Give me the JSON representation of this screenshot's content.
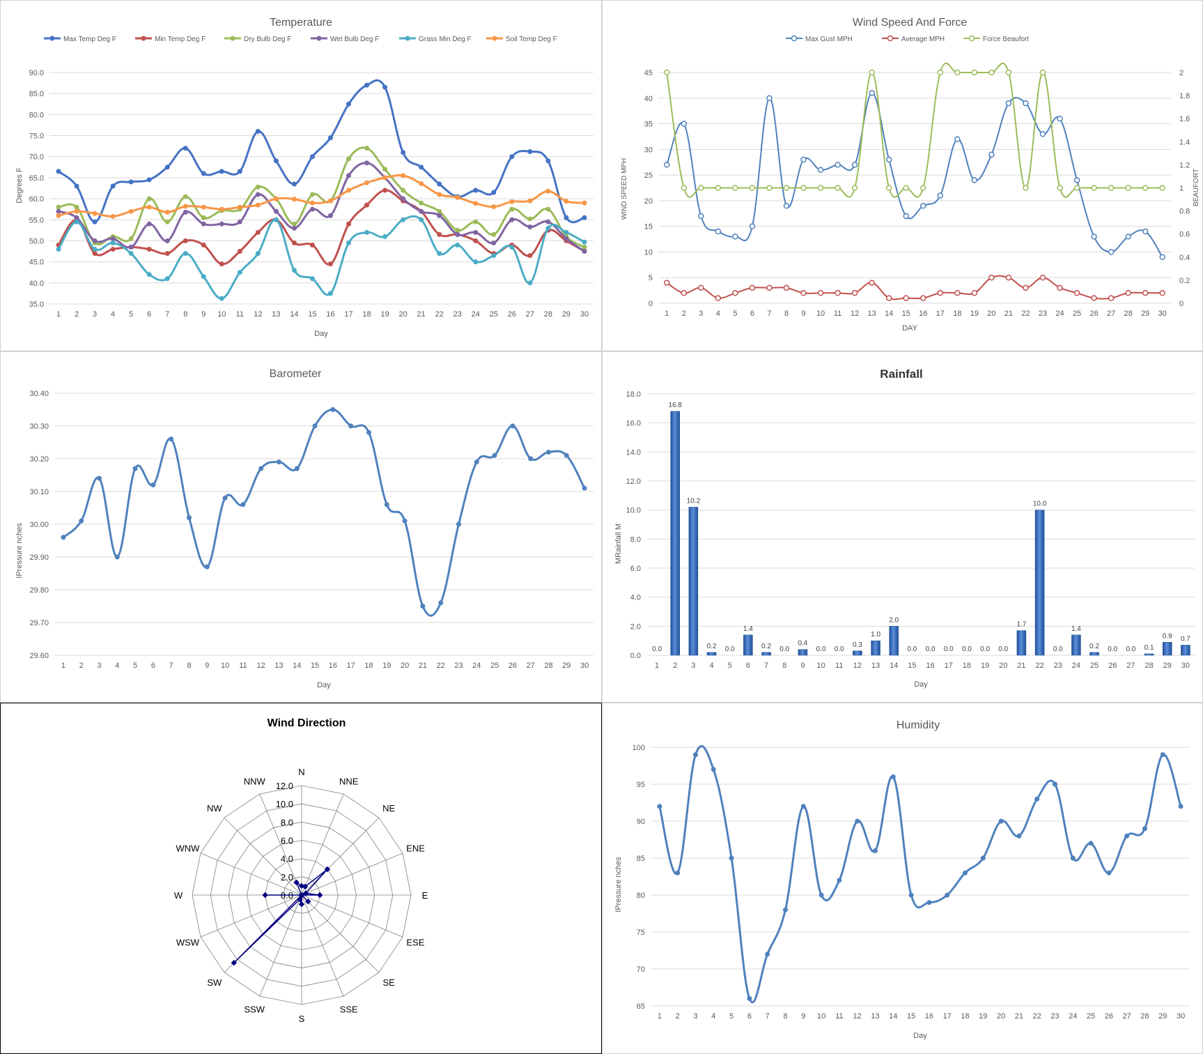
{
  "colors": {
    "max_temp": "#4472C4",
    "min_temp": "#C0504D",
    "dry_bulb": "#9BBB59",
    "wet_bulb": "#8064A2",
    "grass_min": "#4BACC6",
    "soil_temp": "#F79646",
    "wind_gust": "#4F81BD",
    "wind_avg": "#C0504D",
    "beaufort": "#9BBB59",
    "baro": "#4F81BD",
    "rain": "#2E64B0",
    "wind_dir": "#000080",
    "humidity": "#4F81BD",
    "grid": "#D9D9D9",
    "axis_text": "#595959"
  },
  "chart_data": [
    {
      "id": "temperature",
      "type": "line",
      "title": "Temperature",
      "xlabel": "Day",
      "ylabel": "Degrees F",
      "ylim": [
        35,
        90
      ],
      "yticks": [
        "35.0",
        "40.0",
        "45.0",
        "50.0",
        "55.0",
        "60.0",
        "65.0",
        "70.0",
        "75.0",
        "80.0",
        "85.0",
        "90.0"
      ],
      "grid": true,
      "legend": "top",
      "x": [
        1,
        2,
        3,
        4,
        5,
        6,
        7,
        8,
        9,
        10,
        11,
        12,
        13,
        14,
        15,
        16,
        17,
        18,
        19,
        20,
        21,
        22,
        23,
        24,
        25,
        26,
        27,
        28,
        29,
        30
      ],
      "series": [
        {
          "name": "Max Temp Deg F",
          "values": [
            66.5,
            63,
            54.5,
            63,
            64,
            64.5,
            67.5,
            72,
            66,
            66.5,
            66.5,
            76,
            69,
            63.5,
            70,
            74.5,
            82.5,
            87,
            86.5,
            71,
            67.5,
            63.5,
            60.5,
            62,
            61.5,
            70,
            71.2,
            69,
            55.5,
            55.5
          ]
        },
        {
          "name": "Min Temp Deg F",
          "values": [
            49,
            55,
            47,
            48,
            48.5,
            48,
            47,
            50,
            49,
            44.5,
            47.5,
            52,
            55,
            49.5,
            49,
            44.5,
            54,
            58.5,
            62,
            59.5,
            57,
            51.5,
            51.5,
            50,
            47,
            49,
            46.5,
            52.5,
            50,
            47.5
          ]
        },
        {
          "name": "Dry Bulb Deg F",
          "values": [
            58,
            58,
            49.5,
            51,
            50.5,
            60,
            54.5,
            60.5,
            55.5,
            57.2,
            57.5,
            62.8,
            60,
            54,
            61,
            59.5,
            69.5,
            72,
            67,
            62,
            59,
            57,
            52.5,
            54.5,
            51.5,
            57.5,
            55.2,
            57.5,
            51,
            48.5
          ]
        },
        {
          "name": "Wet Bulb Deg F",
          "values": [
            57,
            55.5,
            50,
            50.5,
            48.5,
            54,
            50,
            56.8,
            54,
            54,
            54.5,
            61,
            57,
            53,
            57.5,
            56,
            65.5,
            68.5,
            65,
            60,
            57,
            56,
            51.5,
            52,
            49.5,
            55,
            53.3,
            54.5,
            50.5,
            47.5
          ]
        },
        {
          "name": "Grass Min Deg F",
          "values": [
            48,
            54.5,
            48,
            49.5,
            47,
            42,
            41,
            47,
            41.5,
            36.3,
            42.5,
            47,
            55,
            43,
            41,
            37.5,
            49.5,
            52,
            51,
            55,
            55,
            47,
            49,
            45,
            46.5,
            48.5,
            40,
            53,
            52,
            49.7
          ]
        },
        {
          "name": "Soil Temp Deg F",
          "values": [
            56,
            57,
            56.5,
            55.8,
            57,
            58,
            56.8,
            58.2,
            58,
            57.5,
            58,
            58.5,
            60,
            59.9,
            59,
            59.5,
            62,
            63.8,
            65,
            65.5,
            63.6,
            61,
            60.3,
            58.9,
            58.1,
            59.3,
            59.5,
            61.8,
            59.4,
            59
          ]
        }
      ]
    },
    {
      "id": "wind",
      "type": "line",
      "title": "Wind Speed And Force",
      "xlabel": "DAY",
      "ylabel": "WIND SPEED MPH",
      "y2label": "BEAUFORT",
      "ylim": [
        0,
        45
      ],
      "y2lim": [
        0,
        2
      ],
      "yticks": [
        "0",
        "5",
        "10",
        "15",
        "20",
        "25",
        "30",
        "35",
        "40",
        "45"
      ],
      "y2ticks": [
        "0",
        "0.2",
        "0.4",
        "0.6",
        "0.8",
        "1",
        "1.2",
        "1.4",
        "1.6",
        "1.8",
        "2"
      ],
      "grid": true,
      "legend": "top",
      "x": [
        1,
        2,
        3,
        4,
        5,
        6,
        7,
        8,
        9,
        10,
        11,
        12,
        13,
        14,
        15,
        16,
        17,
        18,
        19,
        20,
        21,
        22,
        23,
        24,
        25,
        26,
        27,
        28,
        29,
        30
      ],
      "series": [
        {
          "name": "Max Gust MPH",
          "axis": "left",
          "values": [
            27,
            35,
            17,
            14,
            13,
            15,
            40,
            19,
            28,
            26,
            27,
            27,
            41,
            28,
            17,
            19,
            21,
            32,
            24,
            29,
            39,
            39,
            33,
            36,
            24,
            13,
            10,
            13,
            14,
            9
          ]
        },
        {
          "name": "Average MPH",
          "axis": "left",
          "values": [
            4,
            2,
            3,
            1,
            2,
            3,
            3,
            3,
            2,
            2,
            2,
            2,
            4,
            1,
            1,
            1,
            2,
            2,
            2,
            5,
            5,
            3,
            5,
            3,
            2,
            1,
            1,
            2,
            2,
            2
          ]
        },
        {
          "name": "Force Beaufort",
          "axis": "right",
          "values": [
            2,
            1,
            1,
            1,
            1,
            1,
            1,
            1,
            1,
            1,
            1,
            1,
            2,
            1,
            1,
            1,
            2,
            2,
            2,
            2,
            2,
            1,
            2,
            1,
            1,
            1,
            1,
            1,
            1,
            1
          ]
        }
      ]
    },
    {
      "id": "barometer",
      "type": "line",
      "title": "Barometer",
      "xlabel": "Day",
      "ylabel": "IPressure nches",
      "ylim": [
        29.6,
        30.4
      ],
      "yticks": [
        "29.60",
        "29.70",
        "29.80",
        "29.90",
        "30.00",
        "30.10",
        "30.20",
        "30.30",
        "30.40"
      ],
      "grid": true,
      "x": [
        1,
        2,
        3,
        4,
        5,
        6,
        7,
        8,
        9,
        10,
        11,
        12,
        13,
        14,
        15,
        16,
        17,
        18,
        19,
        20,
        21,
        22,
        23,
        24,
        25,
        26,
        27,
        28,
        29,
        30
      ],
      "series": [
        {
          "name": "",
          "values": [
            29.96,
            30.01,
            30.14,
            29.9,
            30.17,
            30.12,
            30.26,
            30.02,
            29.87,
            30.08,
            30.06,
            30.17,
            30.19,
            30.17,
            30.3,
            30.35,
            30.3,
            30.28,
            30.06,
            30.01,
            29.75,
            29.76,
            30.0,
            30.19,
            30.21,
            30.3,
            30.2,
            30.22,
            30.21,
            30.11
          ]
        }
      ]
    },
    {
      "id": "rainfall",
      "type": "bar",
      "title": "Rainfall",
      "xlabel": "Day",
      "ylabel": "MRainfall M",
      "ylim": [
        0,
        18
      ],
      "yticks": [
        "0.0",
        "2.0",
        "4.0",
        "6.0",
        "8.0",
        "10.0",
        "12.0",
        "14.0",
        "16.0",
        "18.0"
      ],
      "grid": true,
      "categories": [
        "1",
        "2",
        "3",
        "4",
        "5",
        "6",
        "7",
        "8",
        "9",
        "10",
        "11",
        "12",
        "13",
        "14",
        "15",
        "16",
        "17",
        "18",
        "19",
        "20",
        "21",
        "22",
        "23",
        "24",
        "25",
        "26",
        "27",
        "28",
        "29",
        "30"
      ],
      "values": [
        0.0,
        16.8,
        10.2,
        0.2,
        0.0,
        1.4,
        0.2,
        0.0,
        0.4,
        0.0,
        0.0,
        0.3,
        1.0,
        2.0,
        0.0,
        0.0,
        0.0,
        0.0,
        0.0,
        0.0,
        1.7,
        10.0,
        0.0,
        1.4,
        0.2,
        0.0,
        0.0,
        0.1,
        0.9,
        0.7
      ],
      "data_labels": [
        "0.0",
        "16.8",
        "10.2",
        "0.2",
        "0.0",
        "1.4",
        "0.2",
        "0.0",
        "0.4",
        "0.0",
        "0.0",
        "0.3",
        "1.0",
        "2.0",
        "0.0",
        "0.0",
        "0.0",
        "0.0",
        "0.0",
        "0.0",
        "1.7",
        "10.0",
        "0.0",
        "1.4",
        "0.2",
        "0.0",
        "0.0",
        "0.1",
        "0.9",
        "0.7"
      ]
    },
    {
      "id": "wind_direction",
      "type": "radar",
      "title": "Wind Direction",
      "rlim": [
        0,
        12
      ],
      "rticks": [
        "0.0",
        "2.0",
        "4.0",
        "6.0",
        "8.0",
        "10.0",
        "12.0"
      ],
      "categories": [
        "N",
        "NNE",
        "NE",
        "ENE",
        "E",
        "ESE",
        "SE",
        "SSE",
        "S",
        "SSW",
        "SW",
        "WSW",
        "W",
        "WNW",
        "NW",
        "NNW"
      ],
      "values": [
        1.0,
        1.0,
        4.0,
        0.5,
        2.0,
        0.0,
        1.0,
        0.0,
        1.0,
        0.5,
        10.5,
        0.0,
        4.0,
        0.0,
        0.0,
        1.5
      ]
    },
    {
      "id": "humidity",
      "type": "line",
      "title": "Humidity",
      "xlabel": "Day",
      "ylabel": "IPressure nches",
      "ylim": [
        65,
        100
      ],
      "yticks": [
        "65",
        "70",
        "75",
        "80",
        "85",
        "90",
        "95",
        "100"
      ],
      "grid": true,
      "x": [
        1,
        2,
        3,
        4,
        5,
        6,
        7,
        8,
        9,
        10,
        11,
        12,
        13,
        14,
        15,
        16,
        17,
        18,
        19,
        20,
        21,
        22,
        23,
        24,
        25,
        26,
        27,
        28,
        29,
        30
      ],
      "series": [
        {
          "name": "",
          "values": [
            92,
            83,
            99,
            97,
            85,
            66,
            72,
            78,
            92,
            80,
            82,
            90,
            86,
            96,
            80,
            79,
            80,
            83,
            85,
            90,
            88,
            93,
            95,
            85,
            87,
            83,
            88,
            89,
            99,
            92
          ]
        }
      ]
    }
  ]
}
